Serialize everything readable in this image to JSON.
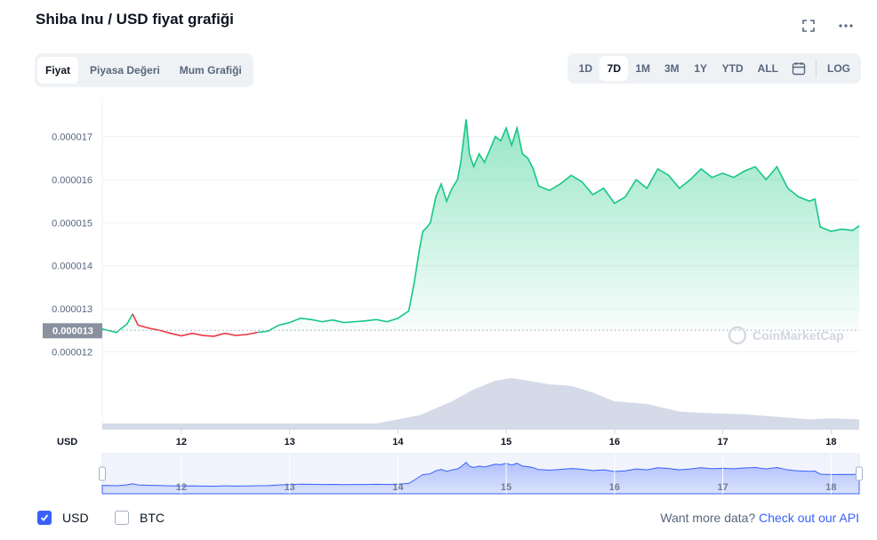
{
  "title": "Shiba Inu / USD fiyat grafiği",
  "header_icons": [
    "fullscreen-icon",
    "more-icon"
  ],
  "tabs": [
    {
      "label": "Fiyat",
      "active": true
    },
    {
      "label": "Piyasa Değeri",
      "active": false
    },
    {
      "label": "Mum Grafiği",
      "active": false
    }
  ],
  "ranges": [
    {
      "label": "1D",
      "active": false
    },
    {
      "label": "7D",
      "active": true
    },
    {
      "label": "1M",
      "active": false
    },
    {
      "label": "3M",
      "active": false
    },
    {
      "label": "1Y",
      "active": false
    },
    {
      "label": "YTD",
      "active": false
    },
    {
      "label": "ALL",
      "active": false
    }
  ],
  "log_label": "LOG",
  "watermark": "CoinMarketCap",
  "currency_label": "USD",
  "current_price_label": "0.000013",
  "colors": {
    "up": "#16c784",
    "down": "#ea3943",
    "volume": "#cfd6e4",
    "navigator": "#3861fb",
    "accent": "#3861fb"
  },
  "chart_data": {
    "type": "line",
    "y_ticks": [
      "0.000017",
      "0.000016",
      "0.000015",
      "0.000014",
      "0.000013",
      "0.000012"
    ],
    "y_tick_values": [
      1.7e-05,
      1.6e-05,
      1.5e-05,
      1.4e-05,
      1.3e-05,
      1.2e-05
    ],
    "ylim": [
      1.17e-05,
      1.79e-05
    ],
    "x_ticks": [
      "12",
      "13",
      "14",
      "15",
      "16",
      "17",
      "18"
    ],
    "x_tick_values": [
      12,
      13,
      14,
      15,
      16,
      17,
      18
    ],
    "xlim": [
      11.27,
      18.26
    ],
    "baseline": 1.25e-05,
    "x": [
      11.27,
      11.4,
      11.5,
      11.55,
      11.6,
      11.7,
      11.8,
      11.9,
      12.0,
      12.1,
      12.2,
      12.3,
      12.4,
      12.5,
      12.6,
      12.7,
      12.8,
      12.9,
      13.0,
      13.1,
      13.2,
      13.3,
      13.4,
      13.5,
      13.6,
      13.7,
      13.8,
      13.9,
      14.0,
      14.1,
      14.15,
      14.2,
      14.23,
      14.27,
      14.3,
      14.35,
      14.4,
      14.45,
      14.5,
      14.55,
      14.58,
      14.6,
      14.63,
      14.66,
      14.7,
      14.75,
      14.8,
      14.85,
      14.9,
      14.95,
      15.0,
      15.05,
      15.1,
      15.15,
      15.2,
      15.25,
      15.3,
      15.35,
      15.4,
      15.5,
      15.6,
      15.7,
      15.8,
      15.9,
      16.0,
      16.1,
      16.2,
      16.3,
      16.4,
      16.5,
      16.6,
      16.7,
      16.8,
      16.9,
      17.0,
      17.1,
      17.2,
      17.3,
      17.4,
      17.5,
      17.6,
      17.7,
      17.8,
      17.85,
      17.9,
      18.0,
      18.1,
      18.2,
      18.26
    ],
    "y": [
      1.253e-05,
      1.245e-05,
      1.265e-05,
      1.288e-05,
      1.262e-05,
      1.255e-05,
      1.25e-05,
      1.243e-05,
      1.237e-05,
      1.243e-05,
      1.238e-05,
      1.236e-05,
      1.243e-05,
      1.238e-05,
      1.24e-05,
      1.245e-05,
      1.248e-05,
      1.262e-05,
      1.268e-05,
      1.278e-05,
      1.275e-05,
      1.27e-05,
      1.274e-05,
      1.268e-05,
      1.27e-05,
      1.272e-05,
      1.275e-05,
      1.27e-05,
      1.278e-05,
      1.295e-05,
      1.36e-05,
      1.44e-05,
      1.48e-05,
      1.49e-05,
      1.5e-05,
      1.56e-05,
      1.59e-05,
      1.55e-05,
      1.58e-05,
      1.6e-05,
      1.64e-05,
      1.68e-05,
      1.74e-05,
      1.66e-05,
      1.63e-05,
      1.66e-05,
      1.64e-05,
      1.67e-05,
      1.7e-05,
      1.69e-05,
      1.72e-05,
      1.68e-05,
      1.72e-05,
      1.66e-05,
      1.65e-05,
      1.625e-05,
      1.585e-05,
      1.58e-05,
      1.575e-05,
      1.59e-05,
      1.61e-05,
      1.595e-05,
      1.565e-05,
      1.58e-05,
      1.545e-05,
      1.56e-05,
      1.6e-05,
      1.58e-05,
      1.625e-05,
      1.61e-05,
      1.58e-05,
      1.6e-05,
      1.625e-05,
      1.605e-05,
      1.615e-05,
      1.605e-05,
      1.62e-05,
      1.63e-05,
      1.6e-05,
      1.63e-05,
      1.58e-05,
      1.56e-05,
      1.55e-05,
      1.555e-05,
      1.49e-05,
      1.48e-05,
      1.485e-05,
      1.482e-05,
      1.493e-05
    ],
    "down_segment_x": [
      11.55,
      12.75
    ],
    "volume": {
      "x": [
        11.27,
        13.0,
        13.8,
        14.2,
        14.5,
        14.7,
        14.9,
        15.05,
        15.2,
        15.4,
        15.6,
        15.8,
        16.0,
        16.3,
        16.6,
        16.9,
        17.2,
        17.5,
        17.8,
        18.0,
        18.26
      ],
      "values": [
        0.12,
        0.12,
        0.12,
        0.28,
        0.55,
        0.78,
        0.95,
        1.0,
        0.95,
        0.88,
        0.85,
        0.72,
        0.55,
        0.5,
        0.35,
        0.32,
        0.3,
        0.25,
        0.2,
        0.22,
        0.2
      ]
    },
    "navigator_labels": [
      "12",
      "13",
      "14",
      "15",
      "16",
      "17",
      "18"
    ]
  },
  "bottom": {
    "checkboxes": [
      {
        "label": "USD",
        "checked": true
      },
      {
        "label": "BTC",
        "checked": false
      }
    ],
    "api_text": "Want more data?",
    "api_link": "Check out our API"
  }
}
